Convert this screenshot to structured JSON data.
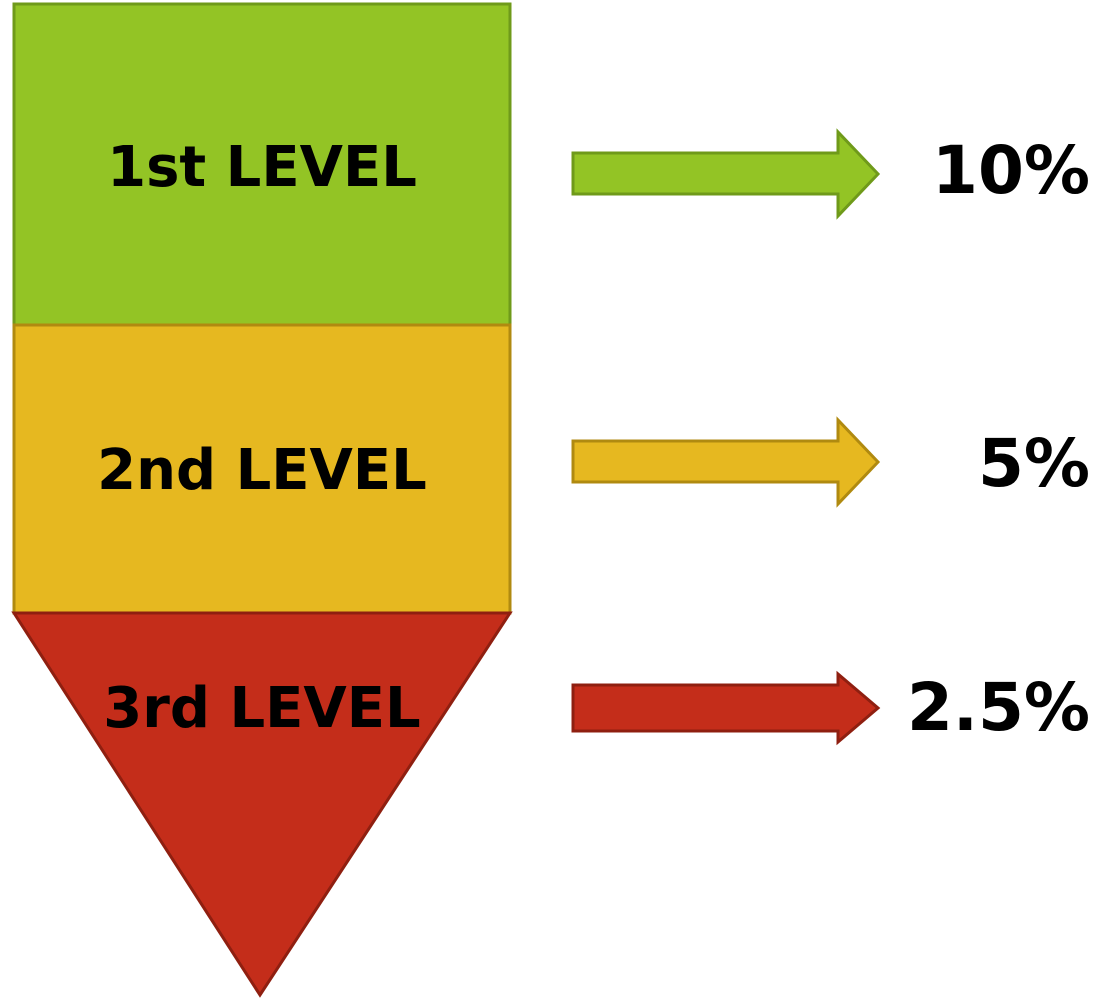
{
  "levels": [
    {
      "label": "1st LEVEL",
      "percent": "10%",
      "color": "#93c425"
    },
    {
      "label": "2nd LEVEL",
      "percent": "5%",
      "color": "#e6b820"
    },
    {
      "label": "3rd LEVEL",
      "percent": "2.5%",
      "color": "#c42d1a"
    }
  ],
  "border_colors": [
    "#6f9a1a",
    "#b08a10",
    "#8f1f10"
  ]
}
